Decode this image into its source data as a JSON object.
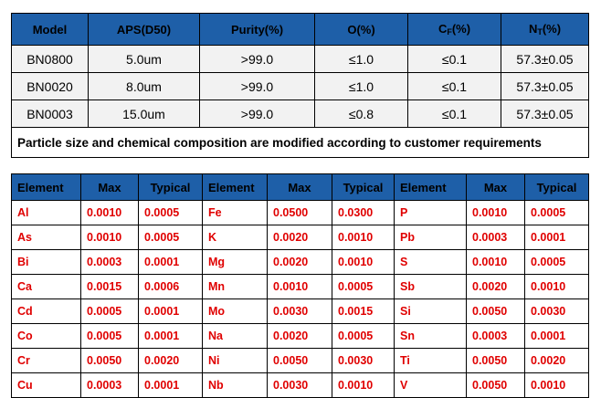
{
  "spec": {
    "headers": [
      "Model",
      "APS(D50)",
      "Purity(%)",
      "O(%)",
      "C_F(%)",
      "N_T(%)"
    ],
    "c_header": {
      "main": "C",
      "sub": "F",
      "suffix": "(%)"
    },
    "n_header": {
      "main": "N",
      "sub": "T",
      "suffix": "(%)"
    },
    "rows": [
      [
        "BN0800",
        "5.0um",
        ">99.0",
        "≤1.0",
        "≤0.1",
        "57.3±0.05"
      ],
      [
        "BN0020",
        "8.0um",
        ">99.0",
        "≤1.0",
        "≤0.1",
        "57.3±0.05"
      ],
      [
        "BN0003",
        "15.0um",
        ">99.0",
        "≤0.8",
        "≤0.1",
        "57.3±0.05"
      ]
    ],
    "note": "Particle size and chemical composition are modified according to customer requirements"
  },
  "elements": {
    "headers": [
      "Element",
      "Max",
      "Typical",
      "Element",
      "Max",
      "Typical",
      "Element",
      "Max",
      "Typical"
    ],
    "rows": [
      [
        "Al",
        "0.0010",
        "0.0005",
        "Fe",
        "0.0500",
        "0.0300",
        "P",
        "0.0010",
        "0.0005"
      ],
      [
        "As",
        "0.0010",
        "0.0005",
        "K",
        "0.0020",
        "0.0010",
        "Pb",
        "0.0003",
        "0.0001"
      ],
      [
        "Bi",
        "0.0003",
        "0.0001",
        "Mg",
        "0.0020",
        "0.0010",
        "S",
        "0.0010",
        "0.0005"
      ],
      [
        "Ca",
        "0.0015",
        "0.0006",
        "Mn",
        "0.0010",
        "0.0005",
        "Sb",
        "0.0020",
        "0.0010"
      ],
      [
        "Cd",
        "0.0005",
        "0.0001",
        "Mo",
        "0.0030",
        "0.0015",
        "Si",
        "0.0050",
        "0.0030"
      ],
      [
        "Co",
        "0.0005",
        "0.0001",
        "Na",
        "0.0020",
        "0.0005",
        "Sn",
        "0.0003",
        "0.0001"
      ],
      [
        "Cr",
        "0.0050",
        "0.0020",
        "Ni",
        "0.0050",
        "0.0030",
        "Ti",
        "0.0050",
        "0.0020"
      ],
      [
        "Cu",
        "0.0003",
        "0.0001",
        "Nb",
        "0.0030",
        "0.0010",
        "V",
        "0.0050",
        "0.0010"
      ]
    ]
  }
}
